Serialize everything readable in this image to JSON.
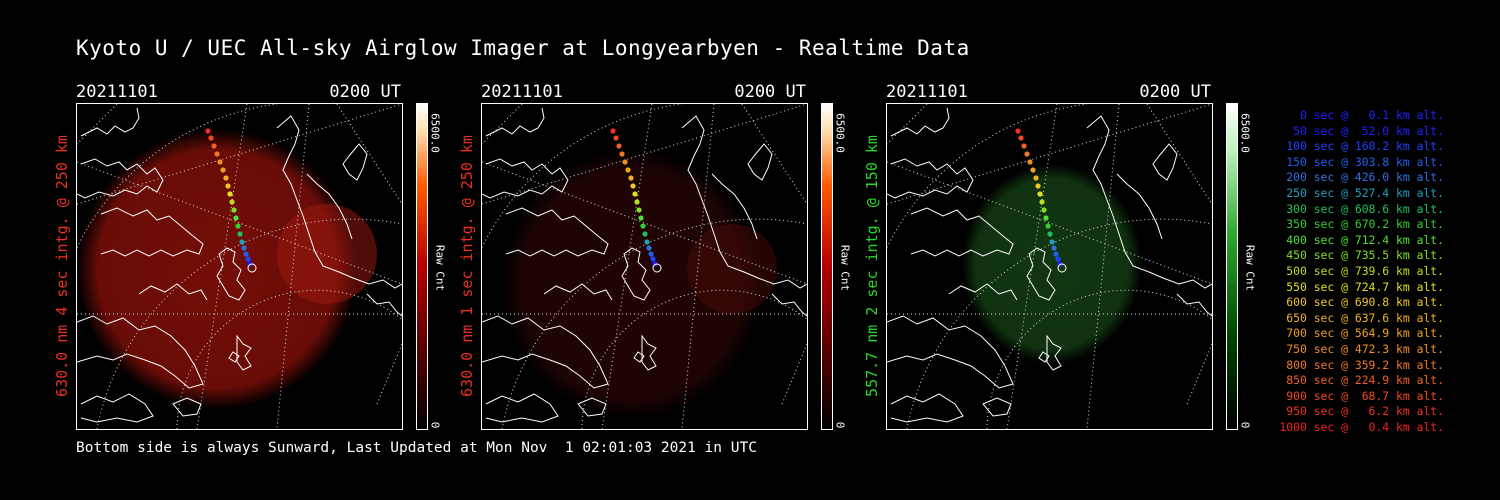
{
  "title": "Kyoto U / UEC All-sky Airglow Imager at Longyearbyen - Realtime Data",
  "panels": [
    {
      "date": "20211101",
      "time": "0200 UT",
      "ylabel": "630.0 nm 4 sec intg. @ 250 km",
      "label_color": "#e83020",
      "colorbar_max": "6500.0",
      "colorbar_unit": "Raw Cnt",
      "colorbar_min": "0",
      "glow": "red"
    },
    {
      "date": "20211101",
      "time": "0200 UT",
      "ylabel": "630.0 nm 1 sec intg. @ 250 km",
      "label_color": "#e83020",
      "colorbar_max": "6500.0",
      "colorbar_unit": "Raw Cnt",
      "colorbar_min": "0",
      "glow": "dim-red"
    },
    {
      "date": "20211101",
      "time": "0200 UT",
      "ylabel": "557.7 nm 2 sec intg. @ 150 km",
      "label_color": "#28d828",
      "colorbar_max": "6500.0",
      "colorbar_unit": "Raw Cnt",
      "colorbar_min": "0",
      "glow": "green"
    }
  ],
  "legend": [
    {
      "text": "0 sec @   0.1 km alt.",
      "color": "#2020ff"
    },
    {
      "text": "50 sec @  52.0 km alt.",
      "color": "#2020ff"
    },
    {
      "text": "100 sec @ 160.2 km alt.",
      "color": "#2040ff"
    },
    {
      "text": "150 sec @ 303.8 km alt.",
      "color": "#2060f0"
    },
    {
      "text": "200 sec @ 426.0 km alt.",
      "color": "#3070e0"
    },
    {
      "text": "250 sec @ 527.4 km alt.",
      "color": "#20a0c0"
    },
    {
      "text": "300 sec @ 608.6 km alt.",
      "color": "#20c060"
    },
    {
      "text": "350 sec @ 670.2 km alt.",
      "color": "#30d030"
    },
    {
      "text": "400 sec @ 712.4 km alt.",
      "color": "#50e030"
    },
    {
      "text": "450 sec @ 735.5 km alt.",
      "color": "#80e020"
    },
    {
      "text": "500 sec @ 739.6 km alt.",
      "color": "#b8e020"
    },
    {
      "text": "550 sec @ 724.7 km alt.",
      "color": "#e0e020"
    },
    {
      "text": "600 sec @ 690.8 km alt.",
      "color": "#f0c820"
    },
    {
      "text": "650 sec @ 637.6 km alt.",
      "color": "#f0b020"
    },
    {
      "text": "700 sec @ 564.9 km alt.",
      "color": "#f0a020"
    },
    {
      "text": "750 sec @ 472.3 km alt.",
      "color": "#f09020"
    },
    {
      "text": "800 sec @ 359.2 km alt.",
      "color": "#f07820"
    },
    {
      "text": "850 sec @ 224.9 km alt.",
      "color": "#f06020"
    },
    {
      "text": "900 sec @  68.7 km alt.",
      "color": "#f04820"
    },
    {
      "text": "950 sec @   6.2 km alt.",
      "color": "#f03020"
    },
    {
      "text": "1000 sec @   0.4 km alt.",
      "color": "#f02020"
    }
  ],
  "footer": "Bottom side is always Sunward, Last Updated at Mon Nov  1 02:01:03 2021 in UTC"
}
